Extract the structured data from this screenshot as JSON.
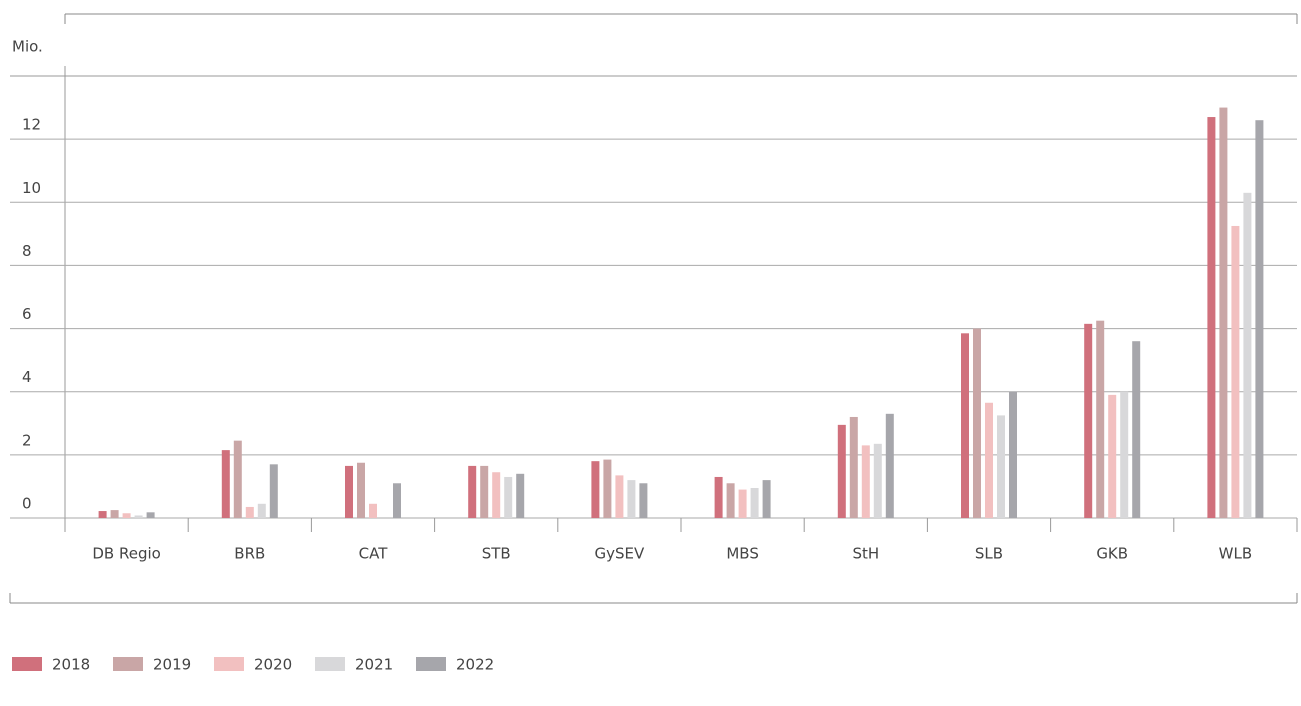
{
  "chart_data": {
    "type": "bar",
    "y_label": "Mio.",
    "categories": [
      "DB Regio",
      "BRB",
      "CAT",
      "STB",
      "GySEV",
      "MBS",
      "StH",
      "SLB",
      "GKB",
      "WLB"
    ],
    "series": [
      {
        "name": "2018",
        "color": "#d0707c",
        "values": [
          0.22,
          2.15,
          1.65,
          1.65,
          1.8,
          1.3,
          2.95,
          5.85,
          6.15,
          12.7
        ]
      },
      {
        "name": "2019",
        "color": "#c9a6a6",
        "values": [
          0.25,
          2.45,
          1.75,
          1.65,
          1.85,
          1.1,
          3.2,
          6.0,
          6.25,
          13.0
        ]
      },
      {
        "name": "2020",
        "color": "#f2c0c0",
        "values": [
          0.15,
          0.35,
          0.45,
          1.45,
          1.35,
          0.9,
          2.3,
          3.65,
          3.9,
          9.25
        ]
      },
      {
        "name": "2021",
        "color": "#d8d8da",
        "values": [
          0.08,
          0.45,
          0,
          1.3,
          1.2,
          0.95,
          2.35,
          3.25,
          4.0,
          10.3
        ]
      },
      {
        "name": "2022",
        "color": "#a6a6ab",
        "values": [
          0.18,
          1.7,
          1.1,
          1.4,
          1.1,
          1.2,
          3.3,
          4.0,
          5.6,
          12.6
        ]
      }
    ],
    "ylim": [
      0,
      14
    ],
    "yticks": [
      0,
      2,
      4,
      6,
      8,
      10,
      12
    ],
    "grid": true
  }
}
